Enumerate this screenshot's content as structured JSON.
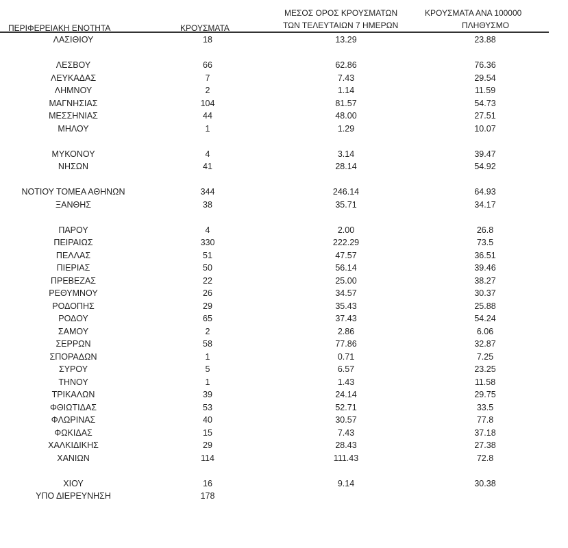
{
  "headers": {
    "region": "ΠΕΡΙΦΕΡΕΙΑΚΗ ΕΝΟΤΗΤΑ",
    "cases": "ΚΡΟΥΣΜΑΤΑ",
    "avg7_line1": "ΜΕΣΟΣ ΟΡΟΣ ΚΡΟΥΣΜΑΤΩΝ",
    "avg7_line2": "ΤΩΝ ΤΕΛΕΥΤΑΙΩΝ 7 ΗΜΕΡΩΝ",
    "per100k_line1": "ΚΡΟΥΣΜΑΤΑ ΑΝΑ 100000",
    "per100k_line2": "ΠΛΗΘΥΣΜΟ"
  },
  "rows": [
    {
      "region": "ΛΑΣΙΘΙΟΥ",
      "cases": "18",
      "avg7": "13.29",
      "per100k": "23.88"
    },
    {
      "region": "ΛΕΣΒΟΥ",
      "cases": "66",
      "avg7": "62.86",
      "per100k": "76.36"
    },
    {
      "region": "ΛΕΥΚΑΔΑΣ",
      "cases": "7",
      "avg7": "7.43",
      "per100k": "29.54"
    },
    {
      "region": "ΛΗΜΝΟΥ",
      "cases": "2",
      "avg7": "1.14",
      "per100k": "11.59"
    },
    {
      "region": "ΜΑΓΝΗΣΙΑΣ",
      "cases": "104",
      "avg7": "81.57",
      "per100k": "54.73"
    },
    {
      "region": "ΜΕΣΣΗΝΙΑΣ",
      "cases": "44",
      "avg7": "48.00",
      "per100k": "27.51"
    },
    {
      "region": "ΜΗΛΟΥ",
      "cases": "1",
      "avg7": "1.29",
      "per100k": "10.07"
    },
    {
      "region": "ΜΥΚΟΝΟΥ",
      "cases": "4",
      "avg7": "3.14",
      "per100k": "39.47"
    },
    {
      "region": "ΝΗΣΩΝ",
      "cases": "41",
      "avg7": "28.14",
      "per100k": "54.92"
    },
    {
      "region": "ΝΟΤΙΟΥ ΤΟΜΕΑ ΑΘΗΝΩΝ",
      "cases": "344",
      "avg7": "246.14",
      "per100k": "64.93"
    },
    {
      "region": "ΞΑΝΘΗΣ",
      "cases": "38",
      "avg7": "35.71",
      "per100k": "34.17"
    },
    {
      "region": "ΠΑΡΟΥ",
      "cases": "4",
      "avg7": "2.00",
      "per100k": "26.8"
    },
    {
      "region": "ΠΕΙΡΑΙΩΣ",
      "cases": "330",
      "avg7": "222.29",
      "per100k": "73.5"
    },
    {
      "region": "ΠΕΛΛΑΣ",
      "cases": "51",
      "avg7": "47.57",
      "per100k": "36.51"
    },
    {
      "region": "ΠΙΕΡΙΑΣ",
      "cases": "50",
      "avg7": "56.14",
      "per100k": "39.46"
    },
    {
      "region": "ΠΡΕΒΕΖΑΣ",
      "cases": "22",
      "avg7": "25.00",
      "per100k": "38.27"
    },
    {
      "region": "ΡΕΘΥΜΝΟΥ",
      "cases": "26",
      "avg7": "34.57",
      "per100k": "30.37"
    },
    {
      "region": "ΡΟΔΟΠΗΣ",
      "cases": "29",
      "avg7": "35.43",
      "per100k": "25.88"
    },
    {
      "region": "ΡΟΔΟΥ",
      "cases": "65",
      "avg7": "37.43",
      "per100k": "54.24"
    },
    {
      "region": "ΣΑΜΟΥ",
      "cases": "2",
      "avg7": "2.86",
      "per100k": "6.06"
    },
    {
      "region": "ΣΕΡΡΩΝ",
      "cases": "58",
      "avg7": "77.86",
      "per100k": "32.87"
    },
    {
      "region": "ΣΠΟΡΑΔΩΝ",
      "cases": "1",
      "avg7": "0.71",
      "per100k": "7.25"
    },
    {
      "region": "ΣΥΡΟΥ",
      "cases": "5",
      "avg7": "6.57",
      "per100k": "23.25"
    },
    {
      "region": "ΤΗΝΟΥ",
      "cases": "1",
      "avg7": "1.43",
      "per100k": "11.58"
    },
    {
      "region": "ΤΡΙΚΑΛΩΝ",
      "cases": "39",
      "avg7": "24.14",
      "per100k": "29.75"
    },
    {
      "region": "ΦΘΙΩΤΙΔΑΣ",
      "cases": "53",
      "avg7": "52.71",
      "per100k": "33.5"
    },
    {
      "region": "ΦΛΩΡΙΝΑΣ",
      "cases": "40",
      "avg7": "30.57",
      "per100k": "77.8"
    },
    {
      "region": "ΦΩΚΙΔΑΣ",
      "cases": "15",
      "avg7": "7.43",
      "per100k": "37.18"
    },
    {
      "region": "ΧΑΛΚΙΔΙΚΗΣ",
      "cases": "29",
      "avg7": "28.43",
      "per100k": "27.38"
    },
    {
      "region": "ΧΑΝΙΩΝ",
      "cases": "114",
      "avg7": "111.43",
      "per100k": "72.8"
    },
    {
      "region": "ΧΙΟΥ",
      "cases": "16",
      "avg7": "9.14",
      "per100k": "30.38"
    },
    {
      "region": "ΥΠΟ ΔΙΕΡΕΥΝΗΣΗ",
      "cases": "178",
      "avg7": "",
      "per100k": ""
    }
  ]
}
